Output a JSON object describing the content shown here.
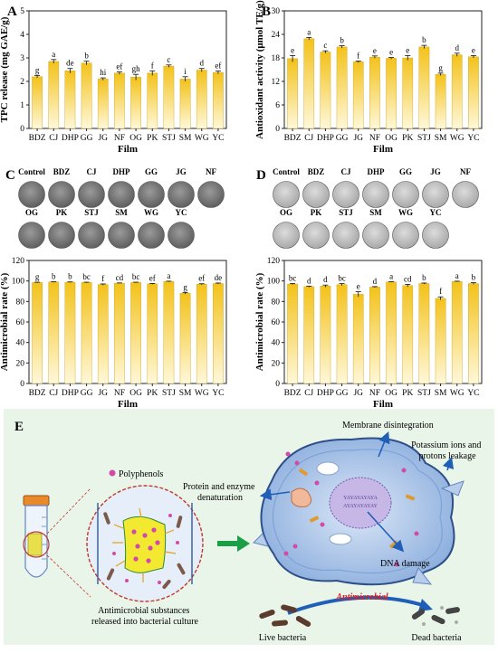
{
  "panels": {
    "A": "A",
    "B": "B",
    "C": "C",
    "D": "D",
    "E": "E"
  },
  "colors": {
    "bar_top": "#f3c21a",
    "bar_bottom": "#fff7d6",
    "axis": "#222222",
    "plate_dark": "#7d7d7d",
    "plate_light": "#c9c9c9",
    "schematic_bg": "#eaf5ea",
    "antimicrobial_text": "#d92020",
    "arrow_blue": "#1f5fb8",
    "arrow_green": "#1a9e48"
  },
  "chart_data": [
    {
      "panel": "A",
      "type": "bar",
      "categories": [
        "BDZ",
        "CJ",
        "DHP",
        "GG",
        "JG",
        "NF",
        "OG",
        "PK",
        "STJ",
        "SM",
        "WG",
        "YC"
      ],
      "values": [
        2.2,
        2.85,
        2.45,
        2.78,
        2.1,
        2.35,
        2.18,
        2.35,
        2.65,
        2.1,
        2.48,
        2.38
      ],
      "errors": [
        0.05,
        0.08,
        0.1,
        0.08,
        0.05,
        0.05,
        0.12,
        0.1,
        0.05,
        0.1,
        0.07,
        0.06
      ],
      "significance": [
        "g",
        "a",
        "de",
        "b",
        "hi",
        "ef",
        "gh",
        "f",
        "c",
        "i",
        "d",
        "ef"
      ],
      "xlabel": "Film",
      "ylabel": "TPC release (mg GAE/g)",
      "ylim": [
        0,
        5
      ],
      "yticks": [
        "0",
        "1",
        "2",
        "3",
        "4",
        "5"
      ]
    },
    {
      "panel": "B",
      "type": "bar",
      "categories": [
        "BDZ",
        "CJ",
        "DHP",
        "GG",
        "JG",
        "NF",
        "OG",
        "PK",
        "STJ",
        "SM",
        "WG",
        "YC"
      ],
      "values": [
        17.8,
        22.9,
        19.5,
        20.8,
        17.0,
        18.2,
        17.9,
        18.0,
        20.8,
        13.8,
        18.8,
        18.3
      ],
      "errors": [
        0.8,
        0.3,
        0.3,
        0.3,
        0.2,
        0.3,
        0.2,
        0.6,
        0.4,
        0.3,
        0.4,
        0.3
      ],
      "significance": [
        "e",
        "a",
        "c",
        "b",
        "f",
        "e",
        "e",
        "e",
        "b",
        "g",
        "d",
        "e"
      ],
      "xlabel": "Film",
      "ylabel": "Antioxidant activity (μmol TE/g)",
      "ylim": [
        0,
        30
      ],
      "yticks": [
        "0",
        "6",
        "12",
        "18",
        "24",
        "30"
      ]
    },
    {
      "panel": "C",
      "type": "bar",
      "categories": [
        "BDZ",
        "CJ",
        "DHP",
        "GG",
        "JG",
        "NF",
        "OG",
        "PK",
        "STJ",
        "SM",
        "WG",
        "YC"
      ],
      "values": [
        98.5,
        99.0,
        98.8,
        98.5,
        96.5,
        97.8,
        98.5,
        97.2,
        99.5,
        88.0,
        96.8,
        97.5
      ],
      "errors": [
        0.3,
        0.3,
        0.3,
        0.3,
        0.6,
        0.3,
        0.3,
        0.4,
        0.3,
        0.8,
        0.5,
        0.5
      ],
      "significance": [
        "g",
        "b",
        "b",
        "bc",
        "f",
        "cd",
        "bc",
        "ef",
        "a",
        "g",
        "ef",
        "de"
      ],
      "xlabel": "Film",
      "ylabel": "Antimicrobial rate (%)",
      "ylim": [
        0,
        120
      ],
      "yticks": [
        "0",
        "20",
        "40",
        "60",
        "80",
        "100",
        "120"
      ]
    },
    {
      "panel": "D",
      "type": "bar",
      "categories": [
        "BDZ",
        "CJ",
        "DHP",
        "GG",
        "JG",
        "NF",
        "OG",
        "PK",
        "STJ",
        "SM",
        "WG",
        "YC"
      ],
      "values": [
        97.0,
        94.5,
        95.0,
        96.5,
        87.0,
        94.0,
        99.0,
        95.5,
        97.5,
        83.0,
        99.5,
        97.5
      ],
      "errors": [
        0.5,
        0.5,
        1.0,
        1.0,
        2.5,
        0.5,
        0.3,
        1.2,
        0.5,
        1.5,
        0.3,
        0.8
      ],
      "significance": [
        "bc",
        "d",
        "d",
        "bc",
        "e",
        "d",
        "a",
        "cd",
        "b",
        "f",
        "a",
        "b"
      ],
      "xlabel": "Film",
      "ylabel": "Antimicrobial rate (%)",
      "ylim": [
        0,
        120
      ],
      "yticks": [
        "0",
        "20",
        "40",
        "60",
        "80",
        "100",
        "120"
      ]
    }
  ],
  "plates": {
    "C": {
      "row1": [
        "Control",
        "BDZ",
        "CJ",
        "DHP",
        "GG",
        "JG",
        "NF"
      ],
      "row2": [
        "OG",
        "PK",
        "STJ",
        "SM",
        "WG",
        "YC"
      ]
    },
    "D": {
      "row1": [
        "Control",
        "BDZ",
        "CJ",
        "DHP",
        "GG",
        "JG",
        "NF"
      ],
      "row2": [
        "OG",
        "PK",
        "STJ",
        "SM",
        "WG",
        "YC"
      ]
    }
  },
  "schematic": {
    "polyphenols": "Polyphenols",
    "released": "Antimicrobial substances released into bacterial culture",
    "membrane": "Membrane disintegration",
    "potassium": "Potassium ions and protons leakage",
    "protein": "Protein and enzyme denaturation",
    "dna": "DNA damage",
    "antimicrobial": "Antimicrobial",
    "live": "Live bacteria",
    "dead": "Dead bacteria"
  }
}
